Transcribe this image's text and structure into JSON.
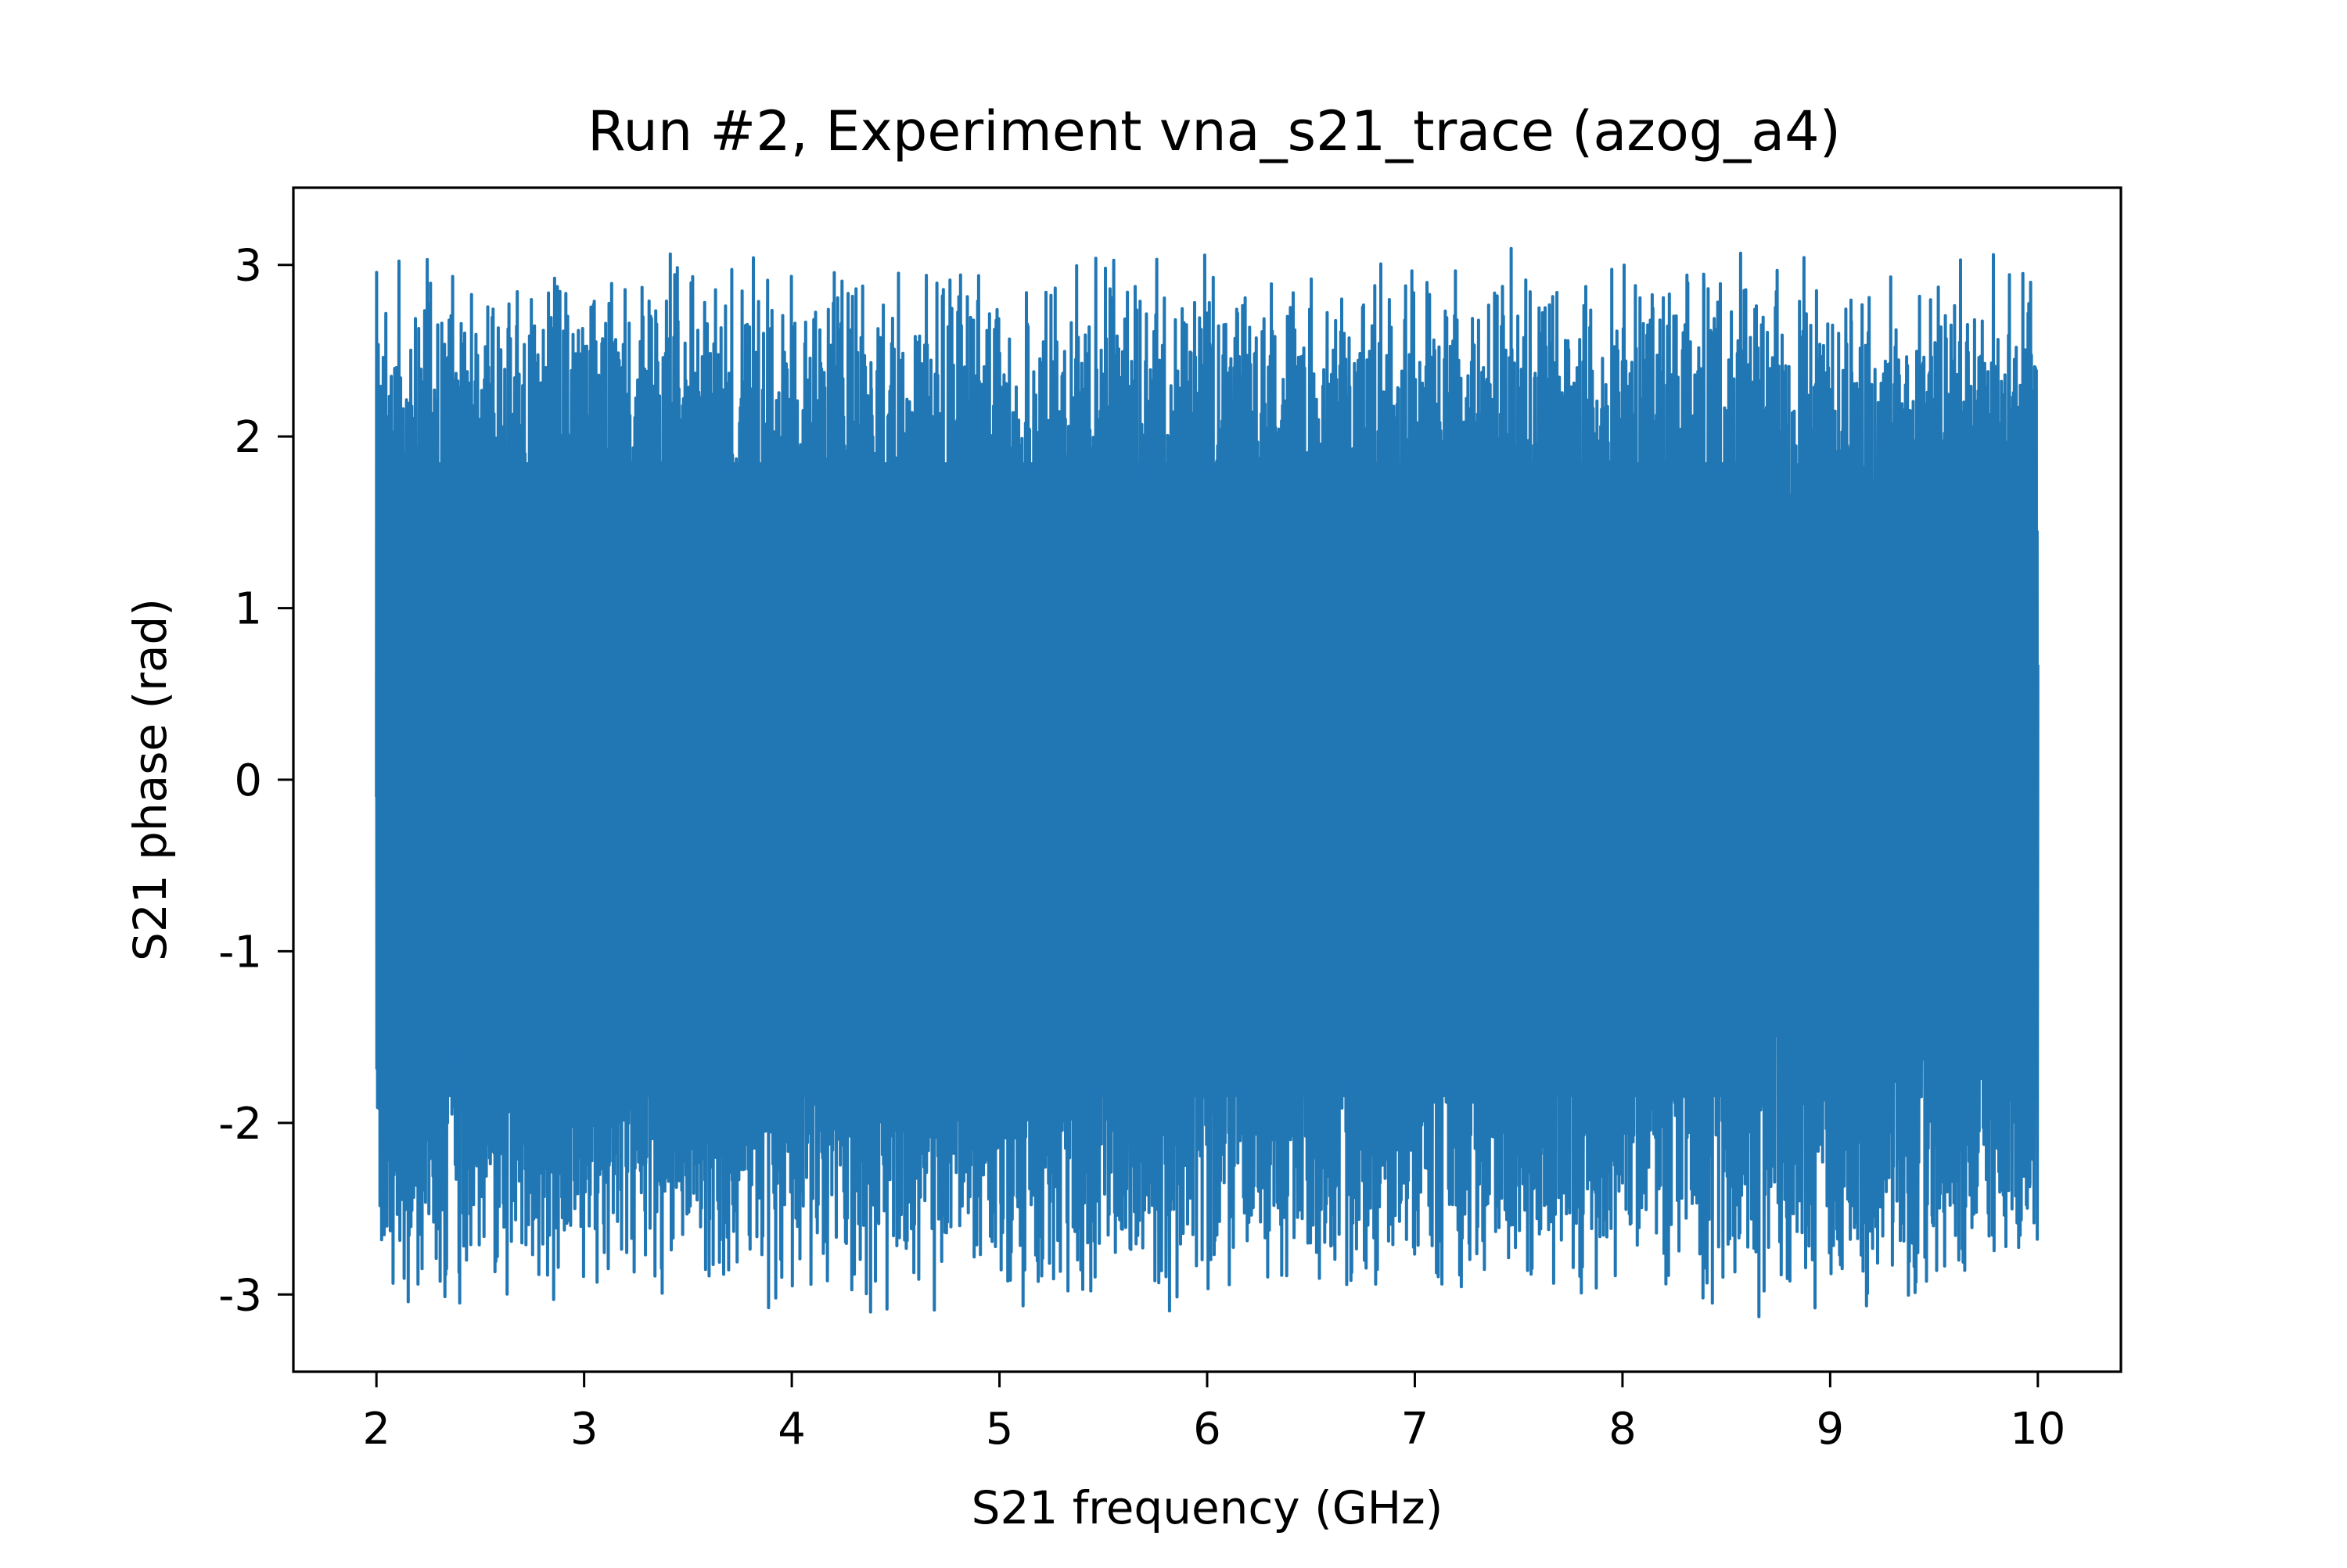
{
  "chart_data": {
    "type": "line",
    "title": "Run #2, Experiment vna_s21_trace (azog_a4)",
    "xlabel": "S21 frequency (GHz)",
    "ylabel": "S21 phase (rad)",
    "xlim": [
      1.6,
      10.4
    ],
    "ylim": [
      -3.45,
      3.45
    ],
    "xticks": [
      2,
      3,
      4,
      5,
      6,
      7,
      8,
      9,
      10
    ],
    "yticks": [
      3,
      2,
      1,
      0,
      -1,
      -2,
      -3
    ],
    "ytick_labels": [
      "3",
      "2",
      "1",
      "0",
      "-1",
      "-2",
      "-3"
    ],
    "grid": false,
    "line_color": "#2077b4",
    "series": [
      {
        "x_range": [
          2.0,
          10.0
        ],
        "y_range": [
          -3.14,
          3.14
        ],
        "note_visible": "",
        "x": [
          2.0,
          2.01,
          2.02,
          2.03,
          2.04,
          2.05,
          2.06,
          2.07,
          2.08,
          2.09,
          2.1,
          2.12,
          2.14,
          2.16,
          2.18,
          2.2,
          2.22,
          2.25,
          2.28,
          2.3,
          2.33,
          2.36,
          2.4,
          2.44,
          2.48,
          2.52,
          2.56,
          2.6,
          2.65,
          2.7,
          2.75,
          2.8,
          2.85,
          2.9,
          2.95,
          3.0,
          3.1,
          3.2,
          3.3,
          3.4,
          3.5,
          3.6,
          3.7,
          3.8,
          3.9,
          4.0,
          4.2,
          4.4,
          4.6,
          4.8,
          5.0,
          5.2,
          5.4,
          5.6,
          5.8,
          6.0,
          6.2,
          6.4,
          6.6,
          6.8,
          7.0,
          7.2,
          7.4,
          7.6,
          7.8,
          8.0,
          8.2,
          8.4,
          8.6,
          8.65,
          8.7,
          8.8,
          8.9,
          9.0,
          9.1,
          9.2,
          9.3,
          9.4,
          9.5,
          9.6,
          9.7,
          9.8,
          9.9,
          10.0
        ],
        "y": [
          -0.1,
          -2.2,
          1.1,
          3.0,
          -1.3,
          3.1,
          -1.2,
          2.2,
          -1.5,
          0.9,
          -2.55,
          2.1,
          -2.85,
          2.4,
          -2.9,
          2.5,
          -2.95,
          2.9,
          -2.8,
          2.0,
          -3.05,
          2.9,
          -2.85,
          2.5,
          -2.45,
          2.9,
          -2.5,
          3.1,
          -2.55,
          2.7,
          -3.0,
          2.8,
          -2.5,
          3.1,
          -2.7,
          2.6,
          -2.95,
          2.7,
          -3.05,
          2.9,
          -2.75,
          3.0,
          -3.1,
          2.85,
          -2.95,
          2.6,
          -3.1,
          3.0,
          -2.85,
          2.75,
          -3.1,
          3.0,
          -3.1,
          2.7,
          -2.95,
          3.1,
          -2.9,
          3.1,
          -2.85,
          2.75,
          -2.9,
          3.0,
          -2.95,
          2.8,
          -3.05,
          2.9,
          -2.85,
          3.1,
          -1.6,
          -2.95,
          2.5,
          -2.8,
          2.6,
          -2.5,
          2.8,
          -3.0,
          2.7,
          -2.9,
          3.1,
          -2.85,
          2.6,
          -3.0,
          2.75,
          2.1
        ]
      }
    ]
  }
}
